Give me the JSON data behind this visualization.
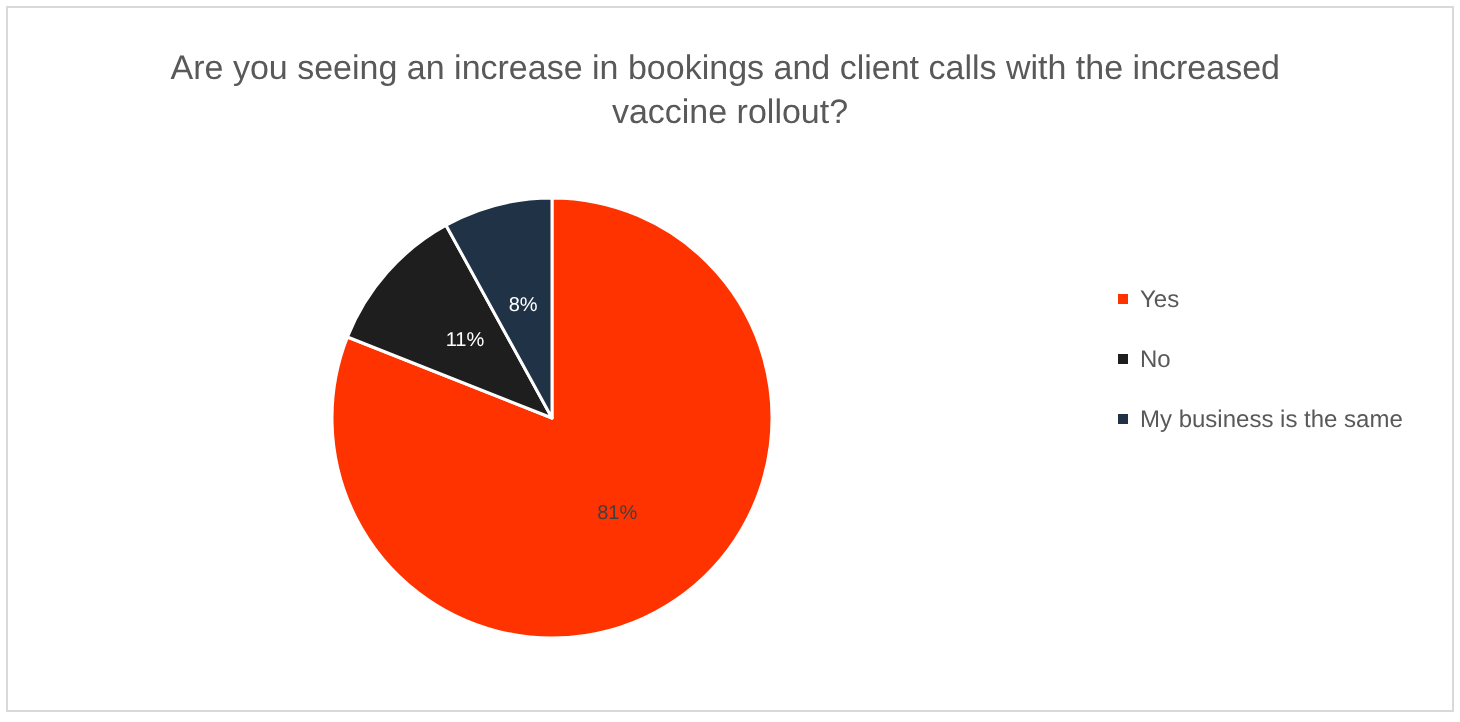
{
  "chart_data": {
    "type": "pie",
    "title": "Are you seeing an increase in bookings and client calls with the increased vaccine rollout?",
    "categories": [
      "Yes",
      "No",
      "My business is the same"
    ],
    "values": [
      81,
      11,
      8
    ],
    "colors": [
      "#ff3300",
      "#1e1e1e",
      "#203246"
    ],
    "value_labels": [
      "81%",
      "11%",
      "8%"
    ],
    "legend": "right"
  }
}
